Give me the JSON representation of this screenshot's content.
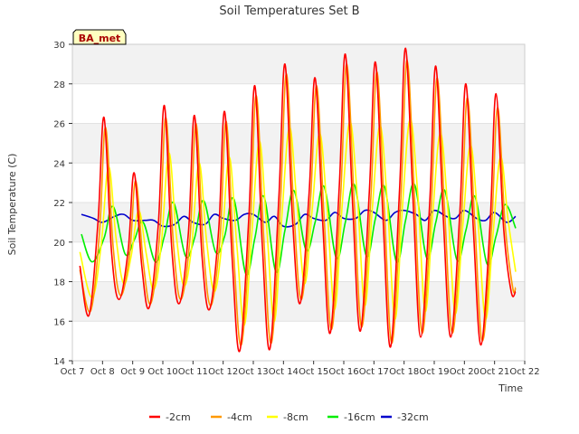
{
  "chart_data": {
    "type": "line",
    "title": "Soil Temperatures Set B",
    "xlabel": "Time",
    "ylabel": "Soil Temperature (C)",
    "annotation": "BA_met",
    "x_ticks": [
      "Oct 7",
      "Oct 8",
      "Oct 9",
      "Oct 10",
      "Oct 11",
      "Oct 12",
      "Oct 13",
      "Oct 14",
      "Oct 15",
      "Oct 16",
      "Oct 17",
      "Oct 18",
      "Oct 19",
      "Oct 20",
      "Oct 21",
      "Oct 22"
    ],
    "y_ticks": [
      14,
      16,
      18,
      20,
      22,
      24,
      26,
      28,
      30
    ],
    "xlim": [
      0,
      15
    ],
    "ylim": [
      14,
      30
    ],
    "x_unit": "days since Oct 7 00:00",
    "grid": "horizontal bands",
    "legend_position": "bottom",
    "series": [
      {
        "name": "-2cm",
        "color": "#ff0000",
        "x": [
          0.25,
          0.55,
          0.85,
          1.05,
          1.3,
          1.55,
          1.85,
          2.05,
          2.3,
          2.55,
          2.85,
          3.05,
          3.3,
          3.55,
          3.85,
          4.05,
          4.3,
          4.55,
          4.85,
          5.05,
          5.3,
          5.55,
          5.85,
          6.05,
          6.3,
          6.55,
          6.85,
          7.05,
          7.3,
          7.55,
          7.85,
          8.05,
          8.3,
          8.55,
          8.85,
          9.05,
          9.3,
          9.55,
          9.85,
          10.05,
          10.3,
          10.55,
          10.85,
          11.05,
          11.3,
          11.55,
          11.85,
          12.05,
          12.3,
          12.55,
          12.85,
          13.05,
          13.3,
          13.55,
          13.85,
          14.05,
          14.3,
          14.55,
          14.7
        ],
        "values": [
          18.8,
          16.3,
          21.0,
          26.3,
          19.5,
          17.1,
          19.6,
          23.5,
          18.8,
          16.7,
          20.9,
          26.9,
          19.6,
          16.9,
          20.5,
          26.4,
          19.3,
          16.6,
          20.6,
          26.6,
          19.1,
          14.5,
          21.2,
          27.9,
          19.8,
          14.6,
          22.3,
          29.0,
          21.2,
          16.9,
          22.5,
          28.3,
          21.0,
          15.4,
          22.8,
          29.5,
          21.7,
          15.5,
          22.6,
          29.1,
          21.3,
          14.7,
          22.7,
          29.8,
          22.0,
          15.2,
          22.0,
          28.9,
          21.2,
          15.2,
          21.5,
          28.0,
          20.6,
          14.8,
          20.9,
          27.5,
          20.7,
          17.5,
          17.5
        ]
      },
      {
        "name": "-4cm",
        "color": "#ff9900",
        "x": [
          0.25,
          0.6,
          0.9,
          1.1,
          1.35,
          1.6,
          1.9,
          2.1,
          2.35,
          2.6,
          2.9,
          3.1,
          3.35,
          3.6,
          3.9,
          4.1,
          4.35,
          4.6,
          4.9,
          5.1,
          5.35,
          5.6,
          5.9,
          6.1,
          6.35,
          6.6,
          6.9,
          7.1,
          7.35,
          7.6,
          7.9,
          8.1,
          8.35,
          8.6,
          8.9,
          9.1,
          9.35,
          9.6,
          9.9,
          10.1,
          10.35,
          10.6,
          10.9,
          11.1,
          11.35,
          11.6,
          11.9,
          12.1,
          12.35,
          12.6,
          12.9,
          13.1,
          13.35,
          13.6,
          13.9,
          14.1,
          14.35,
          14.6,
          14.7
        ],
        "values": [
          18.6,
          16.5,
          20.5,
          25.8,
          19.8,
          17.3,
          19.4,
          23.1,
          19.0,
          16.9,
          20.5,
          26.3,
          19.9,
          17.1,
          20.2,
          26.0,
          19.6,
          16.8,
          20.3,
          26.1,
          19.4,
          14.8,
          21.0,
          27.4,
          20.1,
          14.9,
          22.0,
          28.5,
          21.4,
          17.1,
          22.2,
          27.9,
          21.2,
          15.6,
          22.5,
          29.0,
          21.9,
          15.7,
          22.3,
          28.6,
          21.5,
          14.9,
          22.4,
          29.2,
          22.2,
          15.4,
          21.8,
          28.3,
          21.4,
          15.4,
          21.2,
          27.3,
          20.8,
          15.0,
          20.7,
          26.8,
          20.9,
          17.7,
          17.7
        ]
      },
      {
        "name": "-8cm",
        "color": "#ffff00",
        "x": [
          0.25,
          0.65,
          0.95,
          1.2,
          1.45,
          1.7,
          1.95,
          2.2,
          2.45,
          2.7,
          2.95,
          3.2,
          3.45,
          3.7,
          3.95,
          4.2,
          4.45,
          4.7,
          4.95,
          5.2,
          5.45,
          5.7,
          5.95,
          6.2,
          6.45,
          6.7,
          6.95,
          7.2,
          7.45,
          7.7,
          7.95,
          8.2,
          8.45,
          8.7,
          8.95,
          9.2,
          9.45,
          9.7,
          9.95,
          10.2,
          10.45,
          10.7,
          10.95,
          11.2,
          11.45,
          11.7,
          11.95,
          12.2,
          12.45,
          12.7,
          12.95,
          13.2,
          13.45,
          13.7,
          13.95,
          14.2,
          14.45,
          14.7
        ],
        "values": [
          19.5,
          17.2,
          19.8,
          23.8,
          20.2,
          17.9,
          19.3,
          21.6,
          19.4,
          17.6,
          19.9,
          24.5,
          20.3,
          17.8,
          19.7,
          24.0,
          20.1,
          17.5,
          19.8,
          24.3,
          19.9,
          15.8,
          20.4,
          25.1,
          20.6,
          16.0,
          21.4,
          25.8,
          21.9,
          17.9,
          21.6,
          25.5,
          21.6,
          16.6,
          21.9,
          26.1,
          22.3,
          16.8,
          21.8,
          25.9,
          21.9,
          16.1,
          21.9,
          26.2,
          22.5,
          16.5,
          21.4,
          25.5,
          21.7,
          16.4,
          20.9,
          24.9,
          21.1,
          16.1,
          20.4,
          24.3,
          21.1,
          18.5
        ]
      },
      {
        "name": "-16cm",
        "color": "#00ee00",
        "x": [
          0.3,
          0.65,
          1.05,
          1.35,
          1.75,
          2.05,
          2.35,
          2.75,
          3.05,
          3.35,
          3.75,
          4.05,
          4.35,
          4.75,
          5.05,
          5.35,
          5.75,
          6.05,
          6.35,
          6.75,
          7.05,
          7.35,
          7.75,
          8.05,
          8.35,
          8.75,
          9.05,
          9.35,
          9.75,
          10.05,
          10.35,
          10.75,
          11.05,
          11.35,
          11.75,
          12.05,
          12.35,
          12.75,
          13.05,
          13.35,
          13.75,
          14.05,
          14.35,
          14.7
        ],
        "values": [
          20.4,
          19.0,
          20.2,
          21.8,
          19.4,
          20.1,
          21.0,
          19.0,
          20.3,
          22.0,
          19.3,
          20.2,
          22.1,
          19.5,
          20.3,
          22.2,
          18.4,
          20.2,
          22.3,
          18.5,
          20.6,
          22.6,
          19.6,
          21.0,
          22.8,
          19.2,
          21.0,
          22.9,
          19.3,
          21.2,
          22.8,
          19.0,
          21.1,
          22.9,
          19.2,
          21.0,
          22.6,
          19.1,
          20.6,
          22.3,
          18.9,
          20.3,
          21.9,
          20.7
        ]
      },
      {
        "name": "-32cm",
        "color": "#0000cc",
        "x": [
          0.3,
          0.7,
          1.0,
          1.4,
          1.7,
          2.0,
          2.4,
          2.7,
          3.0,
          3.4,
          3.7,
          4.0,
          4.4,
          4.7,
          5.0,
          5.4,
          5.7,
          6.0,
          6.4,
          6.7,
          7.0,
          7.4,
          7.7,
          8.0,
          8.4,
          8.7,
          9.0,
          9.4,
          9.7,
          10.0,
          10.4,
          10.7,
          11.0,
          11.4,
          11.7,
          12.0,
          12.4,
          12.7,
          13.0,
          13.4,
          13.7,
          14.0,
          14.4,
          14.7
        ],
        "values": [
          21.4,
          21.2,
          21.0,
          21.3,
          21.4,
          21.1,
          21.1,
          21.1,
          20.8,
          20.9,
          21.3,
          21.0,
          20.9,
          21.4,
          21.2,
          21.1,
          21.4,
          21.4,
          21.0,
          21.3,
          20.8,
          20.9,
          21.4,
          21.2,
          21.1,
          21.5,
          21.2,
          21.2,
          21.6,
          21.5,
          21.1,
          21.5,
          21.6,
          21.4,
          21.1,
          21.6,
          21.3,
          21.2,
          21.6,
          21.2,
          21.1,
          21.5,
          21.0,
          21.3
        ]
      }
    ]
  }
}
